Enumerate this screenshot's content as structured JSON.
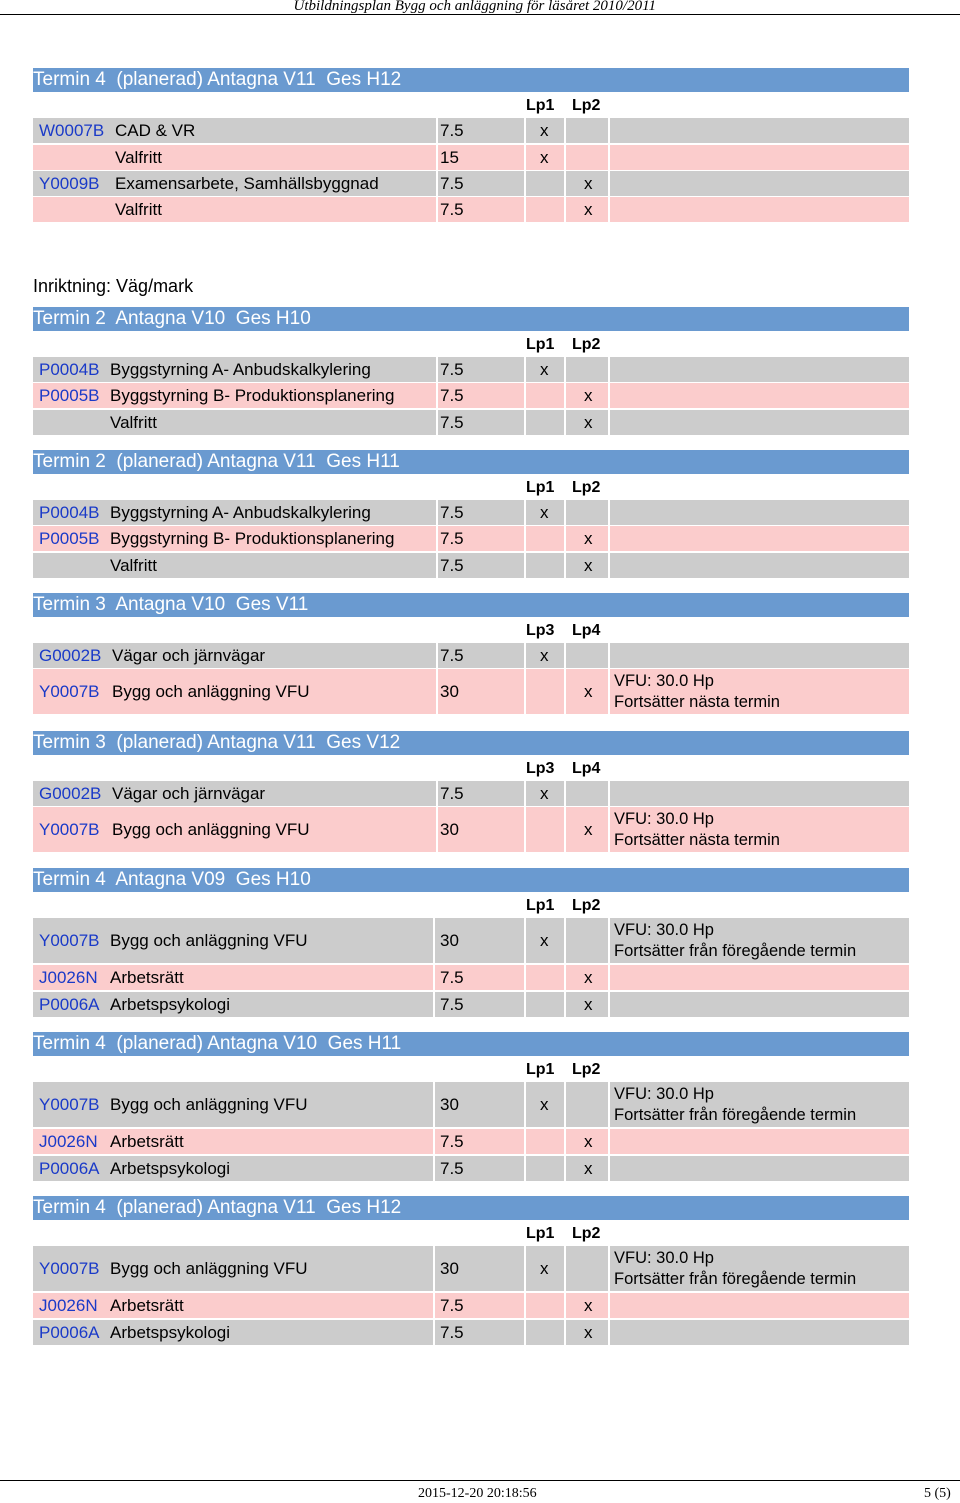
{
  "header": {
    "text": "Utbildningsplan Bygg och anläggning för läsåret 2010/2011"
  },
  "footer": {
    "datetime": "2015-12-20 20:18:56",
    "page": "5 (5)"
  },
  "inriktning": "Inriktning: Väg/mark",
  "sections": [
    {
      "title": "Termin 4  (planerad) Antagna V11  Ges H12",
      "periods": [
        "Lp1",
        "Lp2"
      ],
      "rows": [
        {
          "code": "W0007B",
          "name": "CAD & VR",
          "hp": "7.5",
          "p1": "x",
          "p2": "",
          "note1": "",
          "note2": ""
        },
        {
          "code": "",
          "name": "Valfritt",
          "hp": "15",
          "p1": "x",
          "p2": "",
          "note1": "",
          "note2": ""
        },
        {
          "code": "Y0009B",
          "name": "Examensarbete, Samhällsbyggnad",
          "hp": "7.5",
          "p1": "",
          "p2": "x",
          "note1": "",
          "note2": ""
        },
        {
          "code": "",
          "name": "Valfritt",
          "hp": "7.5",
          "p1": "",
          "p2": "x",
          "note1": "",
          "note2": ""
        }
      ]
    },
    {
      "title": "Termin 2  Antagna V10  Ges H10",
      "periods": [
        "Lp1",
        "Lp2"
      ],
      "rows": [
        {
          "code": "P0004B",
          "name": "Byggstyrning A- Anbudskalkylering",
          "hp": "7.5",
          "p1": "x",
          "p2": "",
          "note1": "",
          "note2": ""
        },
        {
          "code": "P0005B",
          "name": "Byggstyrning B- Produktionsplanering",
          "hp": "7.5",
          "p1": "",
          "p2": "x",
          "note1": "",
          "note2": ""
        },
        {
          "code": "",
          "name": "Valfritt",
          "hp": "7.5",
          "p1": "",
          "p2": "x",
          "note1": "",
          "note2": ""
        }
      ]
    },
    {
      "title": "Termin 2  (planerad) Antagna V11  Ges H11",
      "periods": [
        "Lp1",
        "Lp2"
      ],
      "rows": [
        {
          "code": "P0004B",
          "name": "Byggstyrning A- Anbudskalkylering",
          "hp": "7.5",
          "p1": "x",
          "p2": "",
          "note1": "",
          "note2": ""
        },
        {
          "code": "P0005B",
          "name": "Byggstyrning B- Produktionsplanering",
          "hp": "7.5",
          "p1": "",
          "p2": "x",
          "note1": "",
          "note2": ""
        },
        {
          "code": "",
          "name": "Valfritt",
          "hp": "7.5",
          "p1": "",
          "p2": "x",
          "note1": "",
          "note2": ""
        }
      ]
    },
    {
      "title": "Termin 3  Antagna V10  Ges V11",
      "periods": [
        "Lp3",
        "Lp4"
      ],
      "rows": [
        {
          "code": "G0002B",
          "name": "Vägar och järnvägar",
          "hp": "7.5",
          "p1": "x",
          "p2": "",
          "note1": "",
          "note2": ""
        },
        {
          "code": "Y0007B",
          "name": "Bygg och anläggning VFU",
          "hp": "30",
          "p1": "",
          "p2": "x",
          "note1": "VFU: 30.0 Hp",
          "note2": "Fortsätter nästa termin"
        }
      ]
    },
    {
      "title": "Termin 3  (planerad) Antagna V11  Ges V12",
      "periods": [
        "Lp3",
        "Lp4"
      ],
      "rows": [
        {
          "code": "G0002B",
          "name": "Vägar och järnvägar",
          "hp": "7.5",
          "p1": "x",
          "p2": "",
          "note1": "",
          "note2": ""
        },
        {
          "code": "Y0007B",
          "name": "Bygg och anläggning VFU",
          "hp": "30",
          "p1": "",
          "p2": "x",
          "note1": "VFU: 30.0 Hp",
          "note2": "Fortsätter nästa termin"
        }
      ]
    },
    {
      "title": "Termin 4  Antagna V09  Ges H10",
      "periods": [
        "Lp1",
        "Lp2"
      ],
      "rows": [
        {
          "code": "Y0007B",
          "name": "Bygg och anläggning VFU",
          "hp": "30",
          "p1": "x",
          "p2": "",
          "note1": "VFU: 30.0 Hp",
          "note2": "Fortsätter från föregående termin"
        },
        {
          "code": "J0026N",
          "name": "Arbetsrätt",
          "hp": "7.5",
          "p1": "",
          "p2": "x",
          "note1": "",
          "note2": ""
        },
        {
          "code": "P0006A",
          "name": "Arbetspsykologi",
          "hp": "7.5",
          "p1": "",
          "p2": "x",
          "note1": "",
          "note2": ""
        }
      ]
    },
    {
      "title": "Termin 4  (planerad) Antagna V10  Ges H11",
      "periods": [
        "Lp1",
        "Lp2"
      ],
      "rows": [
        {
          "code": "Y0007B",
          "name": "Bygg och anläggning VFU",
          "hp": "30",
          "p1": "x",
          "p2": "",
          "note1": "VFU: 30.0 Hp",
          "note2": "Fortsätter från föregående termin"
        },
        {
          "code": "J0026N",
          "name": "Arbetsrätt",
          "hp": "7.5",
          "p1": "",
          "p2": "x",
          "note1": "",
          "note2": ""
        },
        {
          "code": "P0006A",
          "name": "Arbetspsykologi",
          "hp": "7.5",
          "p1": "",
          "p2": "x",
          "note1": "",
          "note2": ""
        }
      ]
    },
    {
      "title": "Termin 4  (planerad) Antagna V11  Ges H12",
      "periods": [
        "Lp1",
        "Lp2"
      ],
      "rows": [
        {
          "code": "Y0007B",
          "name": "Bygg och anläggning VFU",
          "hp": "30",
          "p1": "x",
          "p2": "",
          "note1": "VFU: 30.0 Hp",
          "note2": "Fortsätter från föregående termin"
        },
        {
          "code": "J0026N",
          "name": "Arbetsrätt",
          "hp": "7.5",
          "p1": "",
          "p2": "x",
          "note1": "",
          "note2": ""
        },
        {
          "code": "P0006A",
          "name": "Arbetspsykologi",
          "hp": "7.5",
          "p1": "",
          "p2": "x",
          "note1": "",
          "note2": ""
        }
      ]
    }
  ]
}
